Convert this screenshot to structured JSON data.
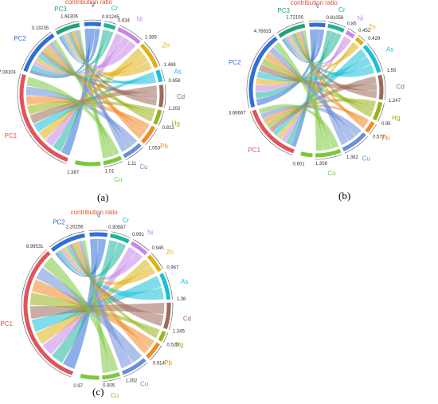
{
  "colors": {
    "V": "#2f6fd6",
    "Cr": "#1fb59a",
    "Ni": "#c985e8",
    "Zn": "#e0b010",
    "As": "#18c0d8",
    "Cd": "#9c6a5a",
    "Hg": "#97b518",
    "Pb": "#f08a24",
    "Cu": "#6a8ed8",
    "Co": "#7cc83c",
    "PC1": "#e0545a",
    "PC2": "#2f6fd6",
    "PC3": "#1fa37e",
    "ratio": "#e05030"
  },
  "chart_data": [
    {
      "type": "chord",
      "panel": "(a)",
      "title": "",
      "contribution_label": "contribution ratio",
      "elements": [
        {
          "name": "V",
          "value": 0.91245
        },
        {
          "name": "Cr",
          "value": 0.634
        },
        {
          "name": "Ni",
          "value": 1.389
        },
        {
          "name": "Zn",
          "value": 1.488
        },
        {
          "name": "As",
          "value": 0.658
        },
        {
          "name": "Cd",
          "value": 1.202
        },
        {
          "name": "Hg",
          "value": 0.813
        },
        {
          "name": "Pb",
          "value": 1.053
        },
        {
          "name": "Cu",
          "value": 1.11
        },
        {
          "name": "Co",
          "value": 1.01
        }
      ],
      "last_value": 1.387,
      "components": [
        {
          "name": "PC1",
          "value": 7.08104
        },
        {
          "name": "PC2",
          "value": 3.13235
        },
        {
          "name": "PC3",
          "value": 1.64306
        }
      ]
    },
    {
      "type": "chord",
      "panel": "(b)",
      "title": "",
      "contribution_label": "contribution ratio",
      "elements": [
        {
          "name": "V",
          "value": 0.81056
        },
        {
          "name": "Cr",
          "value": 0.85
        },
        {
          "name": "Ni",
          "value": 0.452
        },
        {
          "name": "Zn",
          "value": 0.429
        },
        {
          "name": "As",
          "value": 1.55
        },
        {
          "name": "Cd",
          "value": 1.247
        },
        {
          "name": "Hg",
          "value": 0.95
        },
        {
          "name": "Pb",
          "value": 0.577
        },
        {
          "name": "Cu",
          "value": 1.382
        },
        {
          "name": "Co",
          "value": 1.308
        }
      ],
      "last_value": 0.601,
      "components": [
        {
          "name": "PC1",
          "value": 3.66667
        },
        {
          "name": "PC2",
          "value": 4.76633
        },
        {
          "name": "PC3",
          "value": 1.72156
        }
      ]
    },
    {
      "type": "chord",
      "panel": "(c)",
      "title": "",
      "contribution_label": "contribution ratio",
      "elements": [
        {
          "name": "V",
          "value": 0.90587
        },
        {
          "name": "Cr",
          "value": 0.991
        },
        {
          "name": "Ni",
          "value": 0.945
        },
        {
          "name": "Zn",
          "value": 0.967
        },
        {
          "name": "As",
          "value": 1.38
        },
        {
          "name": "Cd",
          "value": 1.345
        },
        {
          "name": "Hg",
          "value": 0.523
        },
        {
          "name": "Pb",
          "value": 0.914
        },
        {
          "name": "Cu",
          "value": 1.352
        },
        {
          "name": "Co",
          "value": 0.905
        }
      ],
      "last_value": 0.97,
      "components": [
        {
          "name": "PC1",
          "value": 8.99531
        },
        {
          "name": "PC2",
          "value": 2.20256
        }
      ]
    }
  ]
}
